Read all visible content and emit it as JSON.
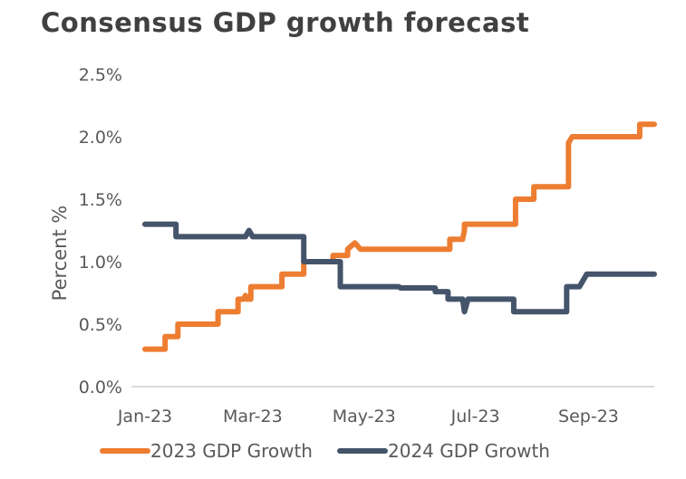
{
  "title": "Consensus GDP growth forecast",
  "chart_data": {
    "type": "line",
    "title": "Consensus GDP growth forecast",
    "xlabel": "",
    "ylabel": "Percent %",
    "ylim": [
      0,
      2.5
    ],
    "y_ticks": [
      0,
      0.5,
      1.0,
      1.5,
      2.0,
      2.5
    ],
    "y_tick_labels": [
      "0.0%",
      "0.5%",
      "1.0%",
      "1.5%",
      "2.0%",
      "2.5%"
    ],
    "x_unit": "days since 2023-01-01",
    "xlim": [
      0,
      279
    ],
    "x_ticks": [
      0,
      59,
      120,
      181,
      243
    ],
    "x_tick_labels": [
      "Jan-23",
      "Mar-23",
      "May-23",
      "Jul-23",
      "Sep-23"
    ],
    "grid": false,
    "legend": "bottom",
    "step": true,
    "series": [
      {
        "name": "2023 GDP Growth",
        "color": "#ED7D31",
        "points": [
          [
            0,
            0.3
          ],
          [
            11,
            0.3
          ],
          [
            11,
            0.4
          ],
          [
            18,
            0.4
          ],
          [
            18,
            0.5
          ],
          [
            40,
            0.5
          ],
          [
            40,
            0.6
          ],
          [
            51,
            0.6
          ],
          [
            51,
            0.7
          ],
          [
            54,
            0.7
          ],
          [
            55,
            0.73
          ],
          [
            56,
            0.7
          ],
          [
            58,
            0.7
          ],
          [
            58,
            0.8
          ],
          [
            75,
            0.8
          ],
          [
            75,
            0.9
          ],
          [
            87,
            0.9
          ],
          [
            87,
            1.0
          ],
          [
            103,
            1.0
          ],
          [
            103,
            1.05
          ],
          [
            111,
            1.05
          ],
          [
            111,
            1.1
          ],
          [
            115,
            1.15
          ],
          [
            118,
            1.1
          ],
          [
            167,
            1.1
          ],
          [
            167,
            1.18
          ],
          [
            174,
            1.18
          ],
          [
            175,
            1.25
          ],
          [
            175,
            1.3
          ],
          [
            203,
            1.3
          ],
          [
            203,
            1.5
          ],
          [
            213,
            1.5
          ],
          [
            213,
            1.6
          ],
          [
            232,
            1.6
          ],
          [
            232,
            1.95
          ],
          [
            234,
            2.0
          ],
          [
            271,
            2.0
          ],
          [
            271,
            2.1
          ],
          [
            279,
            2.1
          ]
        ]
      },
      {
        "name": "2024 GDP Growth",
        "color": "#44546A",
        "points": [
          [
            0,
            1.3
          ],
          [
            17,
            1.3
          ],
          [
            17,
            1.2
          ],
          [
            55,
            1.2
          ],
          [
            57,
            1.25
          ],
          [
            59,
            1.2
          ],
          [
            87,
            1.2
          ],
          [
            87,
            1.0
          ],
          [
            107,
            1.0
          ],
          [
            107,
            0.8
          ],
          [
            139,
            0.8
          ],
          [
            140,
            0.79
          ],
          [
            159,
            0.79
          ],
          [
            159,
            0.76
          ],
          [
            166,
            0.76
          ],
          [
            166,
            0.7
          ],
          [
            174,
            0.7
          ],
          [
            175,
            0.6
          ],
          [
            177,
            0.7
          ],
          [
            202,
            0.7
          ],
          [
            202,
            0.6
          ],
          [
            231,
            0.6
          ],
          [
            231,
            0.8
          ],
          [
            238,
            0.8
          ],
          [
            242,
            0.9
          ],
          [
            279,
            0.9
          ]
        ]
      }
    ]
  }
}
